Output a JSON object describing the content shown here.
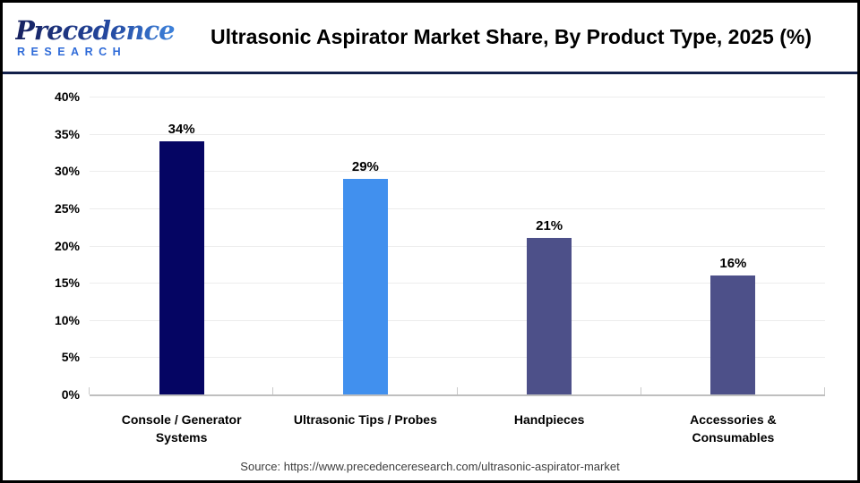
{
  "header": {
    "logo": {
      "brand": "Precedence",
      "sub": "RESEARCH"
    },
    "title": "Ultrasonic Aspirator Market Share, By Product Type, 2025 (%)"
  },
  "chart_data": {
    "type": "bar",
    "title": "Ultrasonic Aspirator Market Share, By Product Type, 2025 (%)",
    "categories": [
      "Console / Generator Systems",
      "Ultrasonic Tips / Probes",
      "Handpieces",
      "Accessories & Consumables"
    ],
    "values": [
      34,
      29,
      21,
      16
    ],
    "value_labels": [
      "34%",
      "29%",
      "21%",
      "16%"
    ],
    "bar_colors": [
      "#050563",
      "#4190ee",
      "#4d5089",
      "#4d5089"
    ],
    "xlabel": "",
    "ylabel": "",
    "ylim": [
      0,
      40
    ],
    "ytick_step": 5,
    "ytick_labels": [
      "0%",
      "5%",
      "10%",
      "15%",
      "20%",
      "25%",
      "30%",
      "35%",
      "40%"
    ],
    "grid": true,
    "legend": false
  },
  "footer": {
    "source": "Source: https://www.precedenceresearch.com/ultrasonic-aspirator-market"
  },
  "colors": {
    "bar_navy": "#050563",
    "bar_blue": "#4190ee",
    "bar_slate": "#4d5089",
    "header_divider": "#13204a",
    "gridline": "#ececec",
    "axis_line": "#bfbfbf",
    "logo_blue": "#2f6bd8",
    "logo_navy": "#16205e"
  }
}
